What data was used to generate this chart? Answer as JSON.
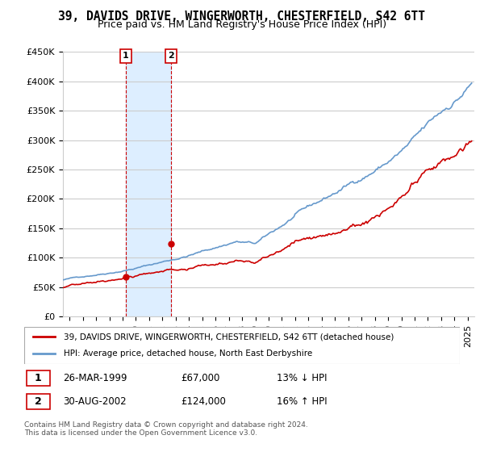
{
  "title": "39, DAVIDS DRIVE, WINGERWORTH, CHESTERFIELD, S42 6TT",
  "subtitle": "Price paid vs. HM Land Registry's House Price Index (HPI)",
  "legend_line1": "39, DAVIDS DRIVE, WINGERWORTH, CHESTERFIELD, S42 6TT (detached house)",
  "legend_line2": "HPI: Average price, detached house, North East Derbyshire",
  "footer": "Contains HM Land Registry data © Crown copyright and database right 2024.\nThis data is licensed under the Open Government Licence v3.0.",
  "table": [
    {
      "num": "1",
      "date": "26-MAR-1999",
      "price": "£67,000",
      "hpi": "13% ↓ HPI"
    },
    {
      "num": "2",
      "date": "30-AUG-2002",
      "price": "£124,000",
      "hpi": "16% ↑ HPI"
    }
  ],
  "sale1_x": 1999.23,
  "sale1_y": 67000,
  "sale2_x": 2002.66,
  "sale2_y": 124000,
  "shade1_xmin": 1999.23,
  "shade1_xmax": 2002.66,
  "ylim_min": 0,
  "ylim_max": 450000,
  "xlim_min": 1994.5,
  "xlim_max": 2025.5,
  "hpi_color": "#6699cc",
  "price_color": "#cc0000",
  "shade_color": "#ddeeff",
  "bg_color": "#ffffff",
  "grid_color": "#cccccc",
  "title_fontsize": 10.5,
  "subtitle_fontsize": 9,
  "tick_fontsize": 8,
  "yticks": [
    0,
    50000,
    100000,
    150000,
    200000,
    250000,
    300000,
    350000,
    400000,
    450000
  ],
  "ytick_labels": [
    "£0",
    "£50K",
    "£100K",
    "£150K",
    "£200K",
    "£250K",
    "£300K",
    "£350K",
    "£400K",
    "£450K"
  ],
  "xtick_years": [
    1995,
    1996,
    1997,
    1998,
    1999,
    2000,
    2001,
    2002,
    2003,
    2004,
    2005,
    2006,
    2007,
    2008,
    2009,
    2010,
    2011,
    2012,
    2013,
    2014,
    2015,
    2016,
    2017,
    2018,
    2019,
    2020,
    2021,
    2022,
    2023,
    2024,
    2025
  ]
}
